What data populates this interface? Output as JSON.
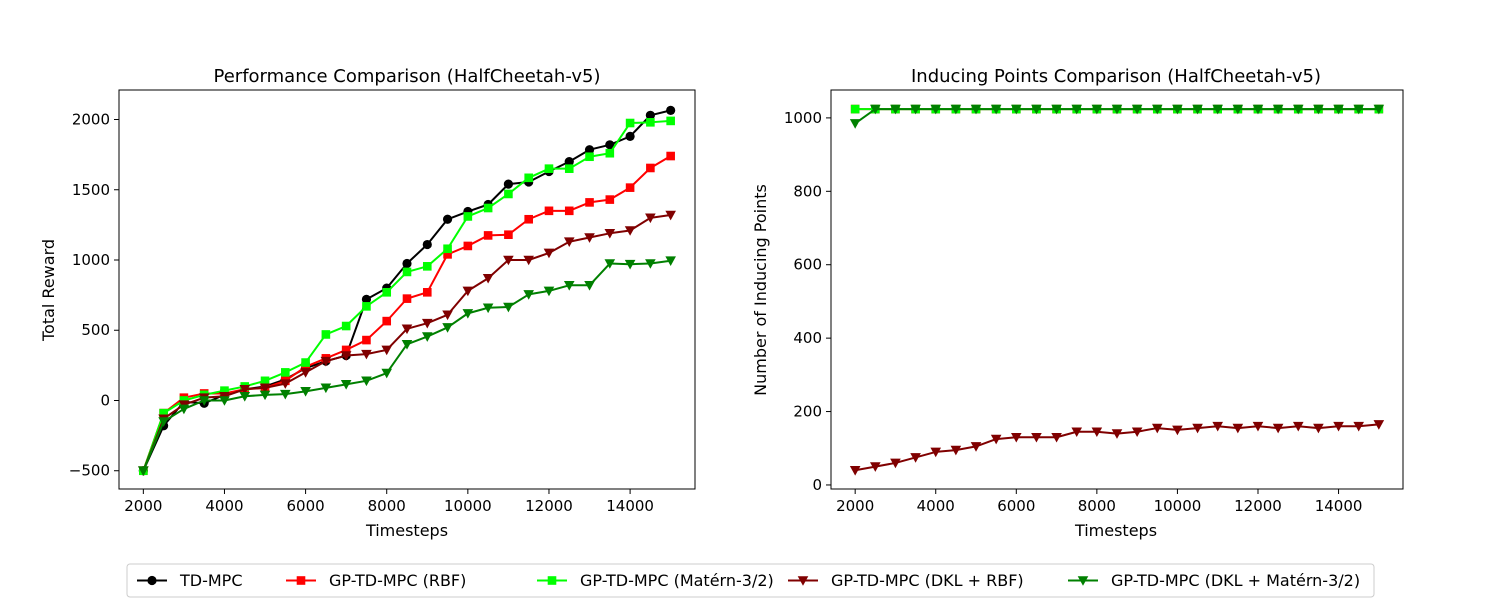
{
  "chart_data": [
    {
      "type": "line",
      "title": "Performance Comparison (HalfCheetah-v5)",
      "xlabel": "Timesteps",
      "ylabel": "Total Reward",
      "xlim": [
        1400,
        15600
      ],
      "ylim": [
        -630,
        2210
      ],
      "xticks": [
        2000,
        4000,
        6000,
        8000,
        10000,
        12000,
        14000
      ],
      "yticks": [
        -500,
        0,
        500,
        1000,
        1500,
        2000
      ],
      "x": [
        2000,
        2500,
        3000,
        3500,
        4000,
        4500,
        5000,
        5500,
        6000,
        6500,
        7000,
        7500,
        8000,
        8500,
        9000,
        9500,
        10000,
        10500,
        11000,
        11500,
        12000,
        12500,
        13000,
        13500,
        14000,
        14500,
        15000
      ],
      "series": [
        {
          "name": "TD-MPC",
          "color": "#000000",
          "marker": "circle",
          "values": [
            -500,
            -180,
            -10,
            -20,
            40,
            80,
            100,
            150,
            230,
            280,
            320,
            720,
            800,
            975,
            1110,
            1290,
            1345,
            1395,
            1540,
            1555,
            1630,
            1700,
            1785,
            1820,
            1880,
            2030,
            2065
          ]
        },
        {
          "name": "GP-TD-MPC (RBF)",
          "color": "#ff0000",
          "marker": "square",
          "values": [
            -500,
            -90,
            20,
            50,
            50,
            80,
            90,
            140,
            240,
            300,
            360,
            430,
            565,
            725,
            770,
            1040,
            1100,
            1175,
            1180,
            1290,
            1350,
            1350,
            1410,
            1430,
            1515,
            1655,
            1740
          ]
        },
        {
          "name": "GP-TD-MPC (Matérn-3/2)",
          "color": "#00ff00",
          "marker": "square",
          "values": [
            -500,
            -90,
            0,
            40,
            70,
            100,
            140,
            200,
            270,
            470,
            530,
            670,
            770,
            915,
            955,
            1080,
            1310,
            1370,
            1470,
            1585,
            1650,
            1650,
            1735,
            1760,
            1975,
            1980,
            1990
          ]
        },
        {
          "name": "GP-TD-MPC (DKL + RBF)",
          "color": "#800000",
          "marker": "triangle-down",
          "values": [
            -500,
            -130,
            -30,
            20,
            30,
            80,
            90,
            120,
            200,
            280,
            320,
            330,
            360,
            510,
            550,
            610,
            780,
            870,
            1000,
            1000,
            1050,
            1130,
            1160,
            1190,
            1210,
            1300,
            1320
          ]
        },
        {
          "name": "GP-TD-MPC (DKL + Matérn-3/2)",
          "color": "#008000",
          "marker": "triangle-down",
          "values": [
            -500,
            -150,
            -60,
            0,
            0,
            30,
            40,
            45,
            65,
            90,
            115,
            140,
            195,
            400,
            455,
            520,
            620,
            660,
            665,
            755,
            780,
            820,
            820,
            975,
            970,
            975,
            995
          ]
        }
      ],
      "grid": false
    },
    {
      "type": "line",
      "title": "Inducing Points Comparison (HalfCheetah-v5)",
      "xlabel": "Timesteps",
      "ylabel": "Number of Inducing Points",
      "xlim": [
        1400,
        15600
      ],
      "ylim": [
        -11,
        1076
      ],
      "xticks": [
        2000,
        4000,
        6000,
        8000,
        10000,
        12000,
        14000
      ],
      "yticks": [
        0,
        200,
        400,
        600,
        800,
        1000
      ],
      "x": [
        2000,
        2500,
        3000,
        3500,
        4000,
        4500,
        5000,
        5500,
        6000,
        6500,
        7000,
        7500,
        8000,
        8500,
        9000,
        9500,
        10000,
        10500,
        11000,
        11500,
        12000,
        12500,
        13000,
        13500,
        14000,
        14500,
        15000
      ],
      "series": [
        {
          "name": "GP-TD-MPC (RBF)",
          "color": "#ff0000",
          "marker": "square",
          "values": [
            1024,
            1024,
            1024,
            1024,
            1024,
            1024,
            1024,
            1024,
            1024,
            1024,
            1024,
            1024,
            1024,
            1024,
            1024,
            1024,
            1024,
            1024,
            1024,
            1024,
            1024,
            1024,
            1024,
            1024,
            1024,
            1024,
            1024
          ]
        },
        {
          "name": "GP-TD-MPC (Matérn-3/2)",
          "color": "#00ff00",
          "marker": "square",
          "values": [
            1024,
            1024,
            1024,
            1024,
            1024,
            1024,
            1024,
            1024,
            1024,
            1024,
            1024,
            1024,
            1024,
            1024,
            1024,
            1024,
            1024,
            1024,
            1024,
            1024,
            1024,
            1024,
            1024,
            1024,
            1024,
            1024,
            1024
          ]
        },
        {
          "name": "GP-TD-MPC (DKL + Matérn-3/2)",
          "color": "#008000",
          "marker": "triangle-down",
          "values": [
            985,
            1024,
            1024,
            1024,
            1024,
            1024,
            1024,
            1024,
            1024,
            1024,
            1024,
            1024,
            1024,
            1024,
            1024,
            1024,
            1024,
            1024,
            1024,
            1024,
            1024,
            1024,
            1024,
            1024,
            1024,
            1024,
            1024
          ]
        },
        {
          "name": "GP-TD-MPC (DKL + RBF)",
          "color": "#800000",
          "marker": "triangle-down",
          "values": [
            40,
            50,
            60,
            75,
            90,
            95,
            105,
            125,
            130,
            130,
            130,
            145,
            145,
            140,
            145,
            155,
            150,
            155,
            160,
            155,
            160,
            155,
            160,
            155,
            160,
            160,
            165
          ]
        }
      ],
      "grid": false
    }
  ],
  "legend": {
    "placement": "bottom-center",
    "entries": [
      {
        "label": "TD-MPC",
        "color": "#000000",
        "marker": "circle"
      },
      {
        "label": "GP-TD-MPC (RBF)",
        "color": "#ff0000",
        "marker": "square"
      },
      {
        "label": "GP-TD-MPC (Matérn-3/2)",
        "color": "#00ff00",
        "marker": "square"
      },
      {
        "label": "GP-TD-MPC (DKL + RBF)",
        "color": "#800000",
        "marker": "triangle-down"
      },
      {
        "label": "GP-TD-MPC (DKL + Matérn-3/2)",
        "color": "#008000",
        "marker": "triangle-down"
      }
    ]
  }
}
